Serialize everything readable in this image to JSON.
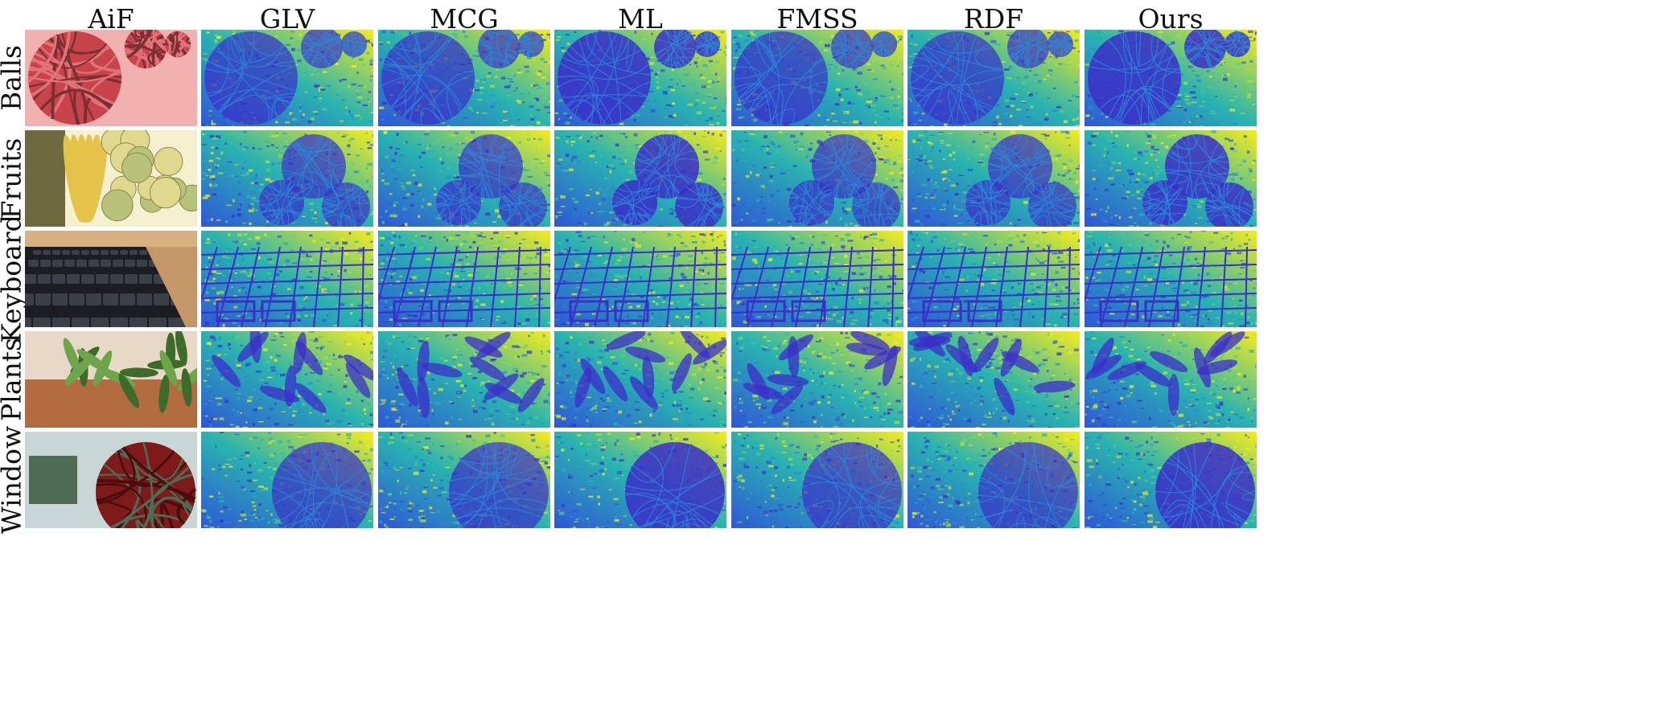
{
  "columns": [
    "AiF",
    "GLV",
    "MCG",
    "ML",
    "FMSS",
    "RDF",
    "Ours"
  ],
  "rows": [
    "Balls",
    "Fruits",
    "Keyboard",
    "Plants",
    "Window"
  ],
  "colormap": [
    "#3b2ec9",
    "#2f56d8",
    "#2a86d6",
    "#29b3b0",
    "#5ccd7a",
    "#b7df3a",
    "#f6ec1c"
  ],
  "scene_colors": {
    "Balls": [
      "#7a2f33",
      "#c8434a",
      "#e07378",
      "#f2b1b1"
    ],
    "Fruits": [
      "#6d6a3f",
      "#b8c27a",
      "#e1d890",
      "#f4f0d0"
    ],
    "Keyboard": [
      "#1b1d22",
      "#3a3f48",
      "#d8b182",
      "#c49768"
    ],
    "Plants": [
      "#3d6b2a",
      "#6fa54a",
      "#b36c3f",
      "#e8d8c8"
    ],
    "Window": [
      "#4a0c0c",
      "#7f1a1a",
      "#4f6a55",
      "#c8d7d6"
    ]
  }
}
